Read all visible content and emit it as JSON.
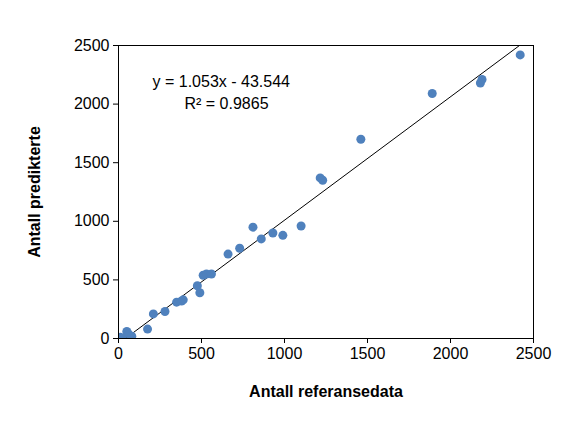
{
  "chart_data": {
    "type": "scatter",
    "x_label": "Antall referansedata",
    "y_label": "Antall predikterte",
    "annotations": [
      "y = 1.053x - 43.544",
      "R² = 0.9865"
    ],
    "trendline": {
      "slope": 1.053,
      "intercept": -43.544
    },
    "x": [
      10,
      20,
      50,
      60,
      80,
      175,
      210,
      280,
      350,
      380,
      390,
      475,
      490,
      510,
      530,
      560,
      660,
      730,
      810,
      860,
      930,
      990,
      1100,
      1215,
      1230,
      1460,
      1890,
      2180,
      2190,
      2420
    ],
    "values": [
      10,
      5,
      60,
      40,
      20,
      80,
      210,
      230,
      310,
      320,
      330,
      450,
      390,
      540,
      550,
      550,
      720,
      770,
      950,
      850,
      900,
      880,
      960,
      1370,
      1350,
      1700,
      2090,
      2180,
      2210,
      2420
    ],
    "color": "#4f81bd",
    "xlim": [
      0,
      2500
    ],
    "xticks": [
      0,
      500,
      1000,
      1500,
      2000,
      2500
    ],
    "ylim": [
      0,
      2500
    ],
    "yticks": [
      0,
      500,
      1000,
      1500,
      2000,
      2500
    ],
    "grid": false
  }
}
